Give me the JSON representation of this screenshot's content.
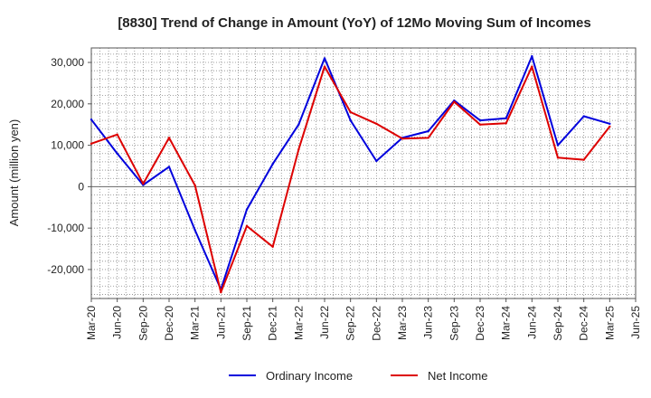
{
  "chart_data": {
    "type": "line",
    "title": "[8830]  Trend of Change in Amount (YoY) of 12Mo Moving Sum of Incomes",
    "xlabel": "",
    "ylabel": "Amount (million yen)",
    "ylim": [
      -27000,
      33500
    ],
    "yticks": [
      30000,
      20000,
      10000,
      0,
      -10000,
      -20000
    ],
    "ytick_labels": [
      "30,000",
      "20,000",
      "10,000",
      "0",
      "-10,000",
      "-20,000"
    ],
    "categories": [
      "Mar-20",
      "Jun-20",
      "Sep-20",
      "Dec-20",
      "Mar-21",
      "Jun-21",
      "Sep-21",
      "Dec-21",
      "Mar-22",
      "Jun-22",
      "Sep-22",
      "Dec-22",
      "Mar-23",
      "Jun-23",
      "Sep-23",
      "Dec-23",
      "Mar-24",
      "Jun-24",
      "Sep-24",
      "Dec-24",
      "Mar-25",
      "Jun-25"
    ],
    "grid": true,
    "legend_position": "bottom",
    "series": [
      {
        "name": "Ordinary Income",
        "color": "#0000dd",
        "values": [
          16200,
          8000,
          400,
          4800,
          -10500,
          -24800,
          -5500,
          5500,
          15000,
          31000,
          16000,
          6200,
          11800,
          13400,
          20800,
          16000,
          16500,
          31500,
          10000,
          17000,
          15200,
          null
        ]
      },
      {
        "name": "Net Income",
        "color": "#dd0000",
        "values": [
          10400,
          12600,
          700,
          11800,
          300,
          -25500,
          -9500,
          -14500,
          9000,
          29000,
          18000,
          15200,
          11600,
          11800,
          20500,
          15000,
          15300,
          29000,
          7000,
          6500,
          14500,
          null
        ]
      }
    ]
  }
}
